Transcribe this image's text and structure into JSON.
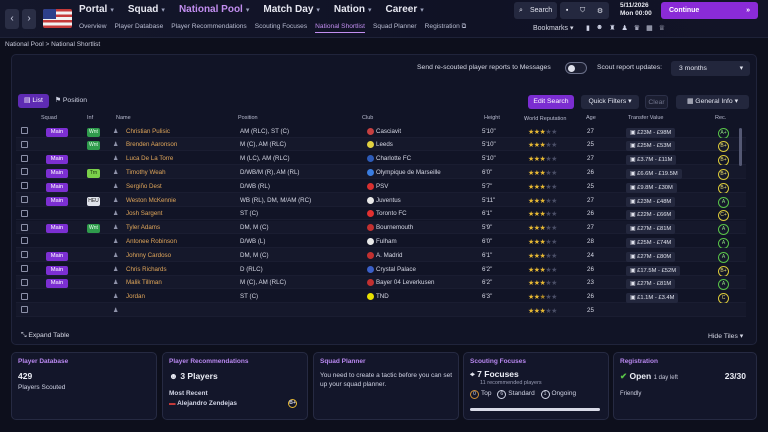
{
  "nav": {
    "main": [
      "Portal",
      "Squad",
      "National Pool",
      "Match Day",
      "Nation",
      "Career"
    ],
    "sub": [
      "Overview",
      "Player Database",
      "Player Recommendations",
      "Scouting Focuses",
      "National Shortlist",
      "Squad Planner",
      "Registration"
    ],
    "search_label": "Search",
    "date": "5/11/2026",
    "day_time": "Mon 00:00",
    "continue_label": "Continue",
    "bookmarks_label": "Bookmarks"
  },
  "breadcrumb": "National Pool > National Shortlist",
  "controls": {
    "rescout_label": "Send re-scouted player reports to Messages",
    "scout_updates_label": "Scout report updates:",
    "scout_updates_value": "3 months",
    "tab_list": "List",
    "tab_position": "Position",
    "edit_search": "Edit Search",
    "quick_filters": "Quick Filters",
    "clear": "Clear",
    "general_info": "General Info"
  },
  "table": {
    "headers": [
      "Squad",
      "Inf",
      "Name",
      "Position",
      "Club",
      "Height",
      "World Reputation",
      "Age",
      "Transfer Value",
      "Rec."
    ],
    "rows": [
      {
        "squad": "Main",
        "inf": "Wnt",
        "name": "Christian Pulisic",
        "position": "AM (RLC), ST (C)",
        "club": "Casciavit",
        "height": "5'10\"",
        "stars": 3,
        "age": "27",
        "value": "£23M - £98M",
        "rec": "A+"
      },
      {
        "squad": "",
        "inf": "Wnt",
        "name": "Brenden Aaronson",
        "position": "M (C), AM (RLC)",
        "club": "Leeds",
        "height": "5'10\"",
        "stars": 3,
        "age": "25",
        "value": "£25M - £53M",
        "rec": "B+"
      },
      {
        "squad": "Main",
        "inf": "",
        "name": "Luca De La Torre",
        "position": "M (LC), AM (RLC)",
        "club": "Charlotte FC",
        "height": "5'10\"",
        "stars": 3,
        "age": "27",
        "value": "£3.7M - £11M",
        "rec": "B+"
      },
      {
        "squad": "Main",
        "inf": "Trn",
        "name": "Timothy Weah",
        "position": "D/WB/M (R), AM (RL)",
        "club": "Olympique de Marseille",
        "height": "6'0\"",
        "stars": 3,
        "age": "26",
        "value": "£6.6M - £19.5M",
        "rec": "B+"
      },
      {
        "squad": "Main",
        "inf": "",
        "name": "Sergiño Dest",
        "position": "D/WB (RL)",
        "club": "PSV",
        "height": "5'7\"",
        "stars": 3,
        "age": "25",
        "value": "£9.8M - £30M",
        "rec": "B+"
      },
      {
        "squad": "Main",
        "inf": "HEU",
        "name": "Weston McKennie",
        "position": "WB (RL), DM, M/AM (RC)",
        "club": "Juventus",
        "height": "5'11\"",
        "stars": 3,
        "age": "27",
        "value": "£23M - £48M",
        "rec": "A"
      },
      {
        "squad": "",
        "inf": "",
        "name": "Josh Sargent",
        "position": "ST (C)",
        "club": "Toronto FC",
        "height": "6'1\"",
        "stars": 3,
        "age": "26",
        "value": "£22M - £66M",
        "rec": "C+"
      },
      {
        "squad": "Main",
        "inf": "Wnt",
        "name": "Tyler Adams",
        "position": "DM, M (C)",
        "club": "Bournemouth",
        "height": "5'9\"",
        "stars": 3,
        "age": "27",
        "value": "£27M - £81M",
        "rec": "A"
      },
      {
        "squad": "",
        "inf": "",
        "name": "Antonee Robinson",
        "position": "D/WB (L)",
        "club": "Fulham",
        "height": "6'0\"",
        "stars": 3,
        "age": "28",
        "value": "£25M - £74M",
        "rec": "A"
      },
      {
        "squad": "Main",
        "inf": "",
        "name": "Johnny Cardoso",
        "position": "DM, M (C)",
        "club": "A. Madrid",
        "height": "6'1\"",
        "stars": 3,
        "age": "24",
        "value": "£27M - £80M",
        "rec": "A"
      },
      {
        "squad": "Main",
        "inf": "",
        "name": "Chris Richards",
        "position": "D (RLC)",
        "club": "Crystal Palace",
        "height": "6'2\"",
        "stars": 3,
        "age": "26",
        "value": "£17.5M - £52M",
        "rec": "B+"
      },
      {
        "squad": "Main",
        "inf": "",
        "name": "Malik Tillman",
        "position": "M (C), AM (RLC)",
        "club": "Bayer 04 Leverkusen",
        "height": "6'2\"",
        "stars": 3,
        "age": "23",
        "value": "£27M - £81M",
        "rec": "A"
      },
      {
        "squad": "",
        "inf": "",
        "name": "Jordan",
        "position": "ST (C)",
        "club": "TND",
        "height": "6'3\"",
        "stars": 2.5,
        "age": "26",
        "value": "£1.1M - £3.4M",
        "rec": "C"
      },
      {
        "squad": "",
        "inf": "",
        "name": "",
        "position": "",
        "club": "",
        "height": "",
        "stars": 3,
        "age": "25",
        "value": "",
        "rec": ""
      }
    ]
  },
  "bottom": {
    "expand": "Expand Table",
    "hide_tiles": "Hide Tiles"
  },
  "tiles": {
    "db": {
      "title": "Player Database",
      "count": "429",
      "sub": "Players Scouted"
    },
    "recs": {
      "title": "Player Recommendations",
      "count": "3 Players",
      "most_recent": "Most Recent",
      "player": "Alejandro Zendejas",
      "rec": "B+"
    },
    "planner": {
      "title": "Squad Planner",
      "text": "You need to create a tactic before you can set up your squad planner."
    },
    "focuses": {
      "title": "Scouting Focuses",
      "count": "7 Focuses",
      "sub": "11 recommended players",
      "top_n": "0",
      "top": "Top",
      "std_n": "6",
      "std": "Standard",
      "ong_n": "1",
      "ong": "Ongoing"
    },
    "reg": {
      "title": "Registration",
      "status": "Open",
      "days": "1 day left",
      "count": "23/30",
      "type": "Friendly"
    }
  },
  "colors": {
    "accent": "#8a2bd8",
    "name": "#e0a65a",
    "stars": "#e6b833"
  }
}
